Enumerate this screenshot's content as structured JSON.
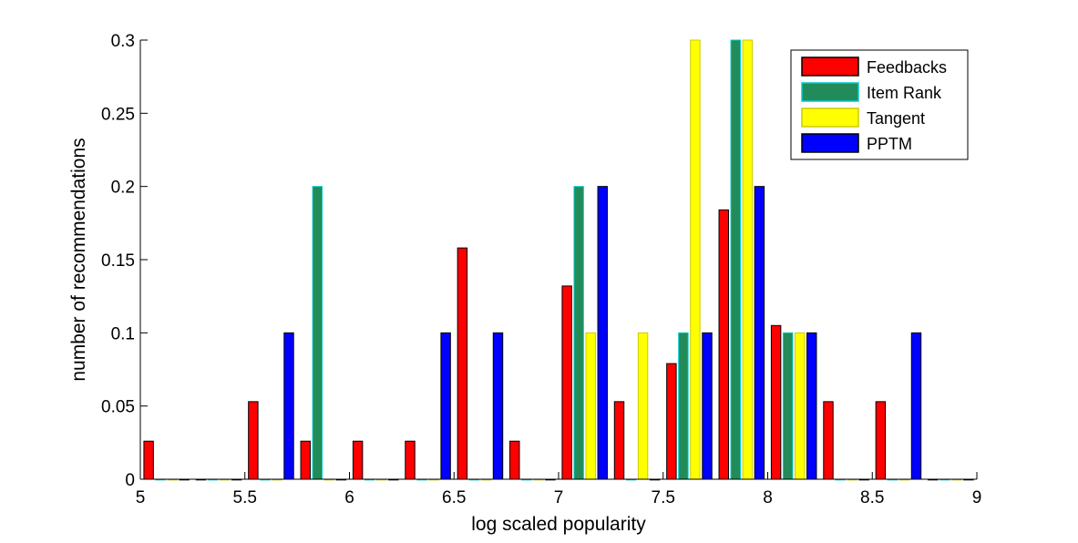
{
  "chart_data": {
    "type": "bar",
    "xlabel": "log scaled popularity",
    "ylabel": "number of recommendations",
    "xlim": [
      5,
      9
    ],
    "ylim": [
      0,
      0.3
    ],
    "x_ticks": [
      "5",
      "5.5",
      "6",
      "6.5",
      "7",
      "7.5",
      "8",
      "8.5",
      "9"
    ],
    "y_ticks": [
      "0",
      "0.05",
      "0.1",
      "0.15",
      "0.2",
      "0.25",
      "0.3"
    ],
    "legend_position": "top-right",
    "bin_centers": [
      5.125,
      5.375,
      5.625,
      5.875,
      6.125,
      6.375,
      6.625,
      6.875,
      7.125,
      7.375,
      7.625,
      7.875,
      8.125,
      8.375,
      8.625,
      8.875
    ],
    "series": [
      {
        "name": "Feedbacks",
        "color": "#ff0000",
        "edge": "#000000",
        "values": [
          0.026,
          0,
          0.053,
          0.026,
          0.026,
          0.026,
          0.158,
          0.026,
          0.132,
          0.053,
          0.079,
          0.184,
          0.105,
          0.053,
          0.053,
          0
        ]
      },
      {
        "name": "Item Rank",
        "color": "#228b5a",
        "edge": "#00cccc",
        "values": [
          0,
          0,
          0,
          0.2,
          0,
          0,
          0,
          0,
          0.2,
          0,
          0.1,
          0.3,
          0.1,
          0,
          0,
          0
        ]
      },
      {
        "name": "Tangent",
        "color": "#ffff00",
        "edge": "#cccc00",
        "values": [
          0,
          0,
          0,
          0,
          0,
          0,
          0,
          0,
          0.1,
          0.1,
          0.3,
          0.3,
          0.1,
          0,
          0,
          0
        ]
      },
      {
        "name": "PPTM",
        "color": "#0000ff",
        "edge": "#000000",
        "values": [
          0,
          0,
          0.1,
          0,
          0,
          0.1,
          0.1,
          0,
          0.2,
          0,
          0.1,
          0.2,
          0.1,
          0,
          0.1,
          0
        ]
      }
    ]
  }
}
